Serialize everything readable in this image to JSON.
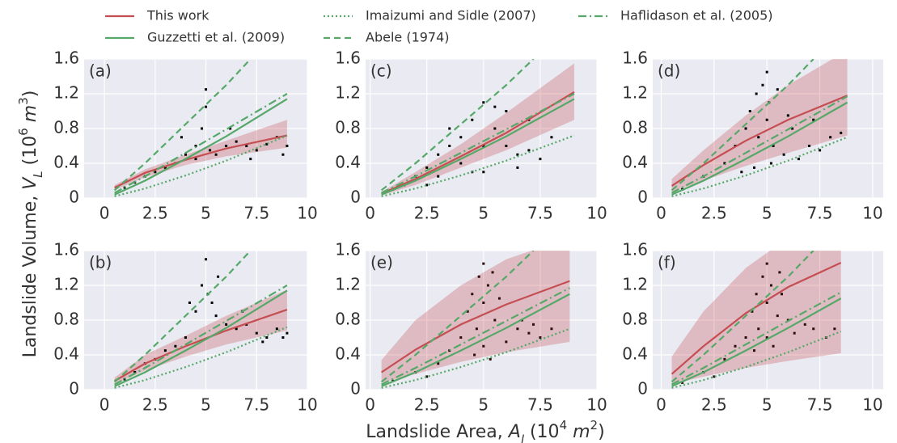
{
  "chart_data": [
    {
      "type": "scatter",
      "label": "(a)",
      "xlim": [
        -1,
        10
      ],
      "ylim": [
        0,
        1.6
      ],
      "xticks": [
        0,
        2.5,
        5,
        7.5,
        10
      ],
      "yticks": [
        0,
        0.4,
        0.8,
        1.2,
        1.6
      ],
      "grid": true,
      "points": {
        "color": "#000000",
        "x": [
          1,
          1.5,
          2,
          2.5,
          3,
          3.5,
          4,
          4.5,
          4.8,
          5,
          5,
          5.2,
          5.5,
          6,
          6.5,
          7,
          7.5,
          8,
          8.5,
          9,
          3.8,
          4.5,
          6.2,
          7.2,
          8.8
        ],
        "y": [
          0.12,
          0.18,
          0.25,
          0.3,
          0.35,
          0.4,
          0.5,
          0.6,
          0.8,
          1.05,
          1.25,
          0.55,
          0.5,
          0.6,
          0.65,
          0.6,
          0.55,
          0.62,
          0.7,
          0.6,
          0.7,
          0.45,
          0.8,
          0.45,
          0.5
        ]
      },
      "series": [
        {
          "name": "This work",
          "color": "#c44e52",
          "style": "solid",
          "x": [
            0.5,
            2,
            4,
            6,
            9
          ],
          "values": [
            0.12,
            0.29,
            0.44,
            0.57,
            0.72
          ],
          "lower": [
            0.09,
            0.24,
            0.38,
            0.48,
            0.58
          ],
          "upper": [
            0.15,
            0.33,
            0.5,
            0.66,
            0.9
          ]
        },
        {
          "name": "Guzzetti et al. (2009)",
          "color": "#55a868",
          "style": "solid",
          "x": [
            0.5,
            2,
            4,
            6,
            9
          ],
          "values": [
            0.04,
            0.2,
            0.45,
            0.71,
            1.14
          ]
        },
        {
          "name": "Imaizumi and Sidle (2007)",
          "color": "#55a868",
          "style": "dotted",
          "x": [
            0.5,
            2,
            4,
            6,
            9
          ],
          "values": [
            0.02,
            0.11,
            0.26,
            0.43,
            0.72
          ]
        },
        {
          "name": "Abele (1974)",
          "color": "#55a868",
          "style": "dashed",
          "x": [
            0.5,
            2,
            4,
            6,
            7.2
          ],
          "values": [
            0.09,
            0.4,
            0.85,
            1.3,
            1.6
          ]
        },
        {
          "name": "Haflidason et al. (2005)",
          "color": "#55a868",
          "style": "dashdot",
          "x": [
            0.5,
            2,
            4,
            6,
            9
          ],
          "values": [
            0.06,
            0.25,
            0.52,
            0.79,
            1.2
          ]
        }
      ]
    },
    {
      "type": "scatter",
      "label": "(b)",
      "xlim": [
        -1,
        10
      ],
      "ylim": [
        0,
        1.6
      ],
      "xticks": [
        0,
        2.5,
        5,
        7.5,
        10
      ],
      "yticks": [
        0,
        0.4,
        0.8,
        1.2,
        1.6
      ],
      "grid": true,
      "points": {
        "color": "#000000",
        "x": [
          1,
          1.5,
          2,
          2.5,
          3,
          3.5,
          4,
          4.5,
          4.8,
          5,
          5.1,
          5.3,
          5.5,
          6,
          6.5,
          7,
          7.5,
          8,
          8.5,
          9,
          4.2,
          5.6,
          6.8,
          7.8,
          8.8
        ],
        "y": [
          0.12,
          0.2,
          0.3,
          0.35,
          0.45,
          0.5,
          0.6,
          0.9,
          1.2,
          1.5,
          1.1,
          1.0,
          0.85,
          0.75,
          0.7,
          0.75,
          0.65,
          0.6,
          0.7,
          0.65,
          1.0,
          1.3,
          0.9,
          0.55,
          0.6
        ]
      },
      "series": [
        {
          "name": "This work",
          "color": "#c44e52",
          "style": "solid",
          "x": [
            0.5,
            2,
            4,
            6,
            9
          ],
          "values": [
            0.1,
            0.3,
            0.5,
            0.68,
            0.92
          ],
          "lower": [
            0.06,
            0.22,
            0.38,
            0.52,
            0.68
          ],
          "upper": [
            0.14,
            0.4,
            0.62,
            0.85,
            1.15
          ]
        },
        {
          "name": "Guzzetti et al. (2009)",
          "color": "#55a868",
          "style": "solid",
          "x": [
            0.5,
            2,
            4,
            6,
            9
          ],
          "values": [
            0.04,
            0.2,
            0.45,
            0.71,
            1.14
          ]
        },
        {
          "name": "Imaizumi and Sidle (2007)",
          "color": "#55a868",
          "style": "dotted",
          "x": [
            0.5,
            2,
            4,
            6,
            9
          ],
          "values": [
            0.02,
            0.11,
            0.26,
            0.43,
            0.72
          ]
        },
        {
          "name": "Abele (1974)",
          "color": "#55a868",
          "style": "dashed",
          "x": [
            0.5,
            2,
            4,
            6,
            7.2
          ],
          "values": [
            0.09,
            0.4,
            0.85,
            1.3,
            1.6
          ]
        },
        {
          "name": "Haflidason et al. (2005)",
          "color": "#55a868",
          "style": "dashdot",
          "x": [
            0.5,
            2,
            4,
            6,
            9
          ],
          "values": [
            0.06,
            0.25,
            0.52,
            0.79,
            1.2
          ]
        }
      ]
    },
    {
      "type": "scatter",
      "label": "(c)",
      "xlim": [
        -0.2,
        10
      ],
      "ylim": [
        0,
        1.6
      ],
      "xticks": [
        0,
        2.5,
        5,
        7.5,
        10
      ],
      "yticks": [
        0,
        0.4,
        0.8,
        1.2,
        1.6
      ],
      "grid": true,
      "points": {
        "color": "#000000",
        "x": [
          1,
          1.5,
          2,
          2.5,
          3,
          3.5,
          4,
          4.5,
          5,
          5,
          5.5,
          6,
          6.5,
          7,
          7.5,
          8,
          3,
          4,
          5,
          6,
          7,
          4.5,
          5.5,
          6.5,
          2.5,
          3.5
        ],
        "y": [
          0.1,
          0.15,
          0.25,
          0.35,
          0.5,
          0.6,
          0.7,
          0.9,
          1.1,
          0.3,
          0.8,
          0.6,
          0.5,
          0.55,
          0.45,
          0.7,
          0.25,
          0.4,
          0.6,
          1.0,
          0.9,
          0.3,
          1.05,
          0.35,
          0.15,
          0.8
        ]
      },
      "series": [
        {
          "name": "This work",
          "color": "#c44e52",
          "style": "solid",
          "x": [
            0.5,
            2,
            4,
            6,
            9
          ],
          "values": [
            0.05,
            0.22,
            0.48,
            0.75,
            1.22
          ],
          "lower": [
            0.03,
            0.15,
            0.35,
            0.55,
            0.9
          ],
          "upper": [
            0.07,
            0.3,
            0.62,
            0.98,
            1.55
          ]
        },
        {
          "name": "Guzzetti et al. (2009)",
          "color": "#55a868",
          "style": "solid",
          "x": [
            0.5,
            2,
            4,
            6,
            9
          ],
          "values": [
            0.04,
            0.2,
            0.45,
            0.71,
            1.14
          ]
        },
        {
          "name": "Imaizumi and Sidle (2007)",
          "color": "#55a868",
          "style": "dotted",
          "x": [
            0.5,
            2,
            4,
            6,
            9
          ],
          "values": [
            0.02,
            0.11,
            0.26,
            0.43,
            0.72
          ]
        },
        {
          "name": "Abele (1974)",
          "color": "#55a868",
          "style": "dashed",
          "x": [
            0.5,
            2,
            4,
            6,
            7.2
          ],
          "values": [
            0.09,
            0.4,
            0.85,
            1.3,
            1.6
          ]
        },
        {
          "name": "Haflidason et al. (2005)",
          "color": "#55a868",
          "style": "dashdot",
          "x": [
            0.5,
            2,
            4,
            6,
            9
          ],
          "values": [
            0.06,
            0.25,
            0.52,
            0.79,
            1.2
          ]
        }
      ]
    },
    {
      "type": "scatter",
      "label": "(d)",
      "xlim": [
        -0.4,
        10.5
      ],
      "ylim": [
        0,
        1.6
      ],
      "xticks": [
        0,
        2.5,
        5,
        7.5,
        10
      ],
      "yticks": [
        0,
        0.4,
        0.8,
        1.2,
        1.6
      ],
      "grid": true,
      "points": {
        "color": "#000000",
        "x": [
          1,
          2,
          3,
          3.5,
          4,
          4.2,
          4.5,
          4.6,
          4.8,
          5,
          5,
          5.1,
          5.3,
          5.5,
          5.8,
          6,
          6.5,
          7,
          7.5,
          8,
          8.5,
          4.4,
          5.2,
          6.2,
          7.2,
          3.8
        ],
        "y": [
          0.1,
          0.25,
          0.4,
          0.6,
          0.8,
          1.0,
          1.2,
          0.7,
          1.3,
          1.45,
          0.9,
          1.1,
          0.6,
          1.25,
          0.5,
          0.95,
          0.45,
          0.6,
          0.55,
          0.7,
          0.75,
          0.35,
          0.4,
          0.8,
          0.9,
          0.3
        ]
      },
      "series": [
        {
          "name": "This work",
          "color": "#c44e52",
          "style": "solid",
          "x": [
            0.5,
            2,
            4,
            6,
            8.8
          ],
          "values": [
            0.14,
            0.38,
            0.66,
            0.9,
            1.18
          ],
          "lower": [
            0.07,
            0.2,
            0.37,
            0.52,
            0.72
          ],
          "upper": [
            0.22,
            0.55,
            0.95,
            1.3,
            1.7
          ]
        },
        {
          "name": "Guzzetti et al. (2009)",
          "color": "#55a868",
          "style": "solid",
          "x": [
            0.5,
            2,
            4,
            6,
            8.8
          ],
          "values": [
            0.04,
            0.2,
            0.45,
            0.71,
            1.1
          ]
        },
        {
          "name": "Imaizumi and Sidle (2007)",
          "color": "#55a868",
          "style": "dotted",
          "x": [
            0.5,
            2,
            4,
            6,
            8.8
          ],
          "values": [
            0.02,
            0.11,
            0.26,
            0.43,
            0.7
          ]
        },
        {
          "name": "Abele (1974)",
          "color": "#55a868",
          "style": "dashed",
          "x": [
            0.5,
            2,
            4,
            6,
            7.2
          ],
          "values": [
            0.09,
            0.4,
            0.85,
            1.3,
            1.6
          ]
        },
        {
          "name": "Haflidason et al. (2005)",
          "color": "#55a868",
          "style": "dashdot",
          "x": [
            0.5,
            2,
            4,
            6,
            8.8
          ],
          "values": [
            0.06,
            0.25,
            0.52,
            0.79,
            1.17
          ]
        }
      ]
    },
    {
      "type": "scatter",
      "label": "(e)",
      "xlim": [
        -0.2,
        10
      ],
      "ylim": [
        0,
        1.6
      ],
      "xticks": [
        0,
        2.5,
        5,
        7.5,
        10
      ],
      "yticks": [
        0,
        0.4,
        0.8,
        1.2,
        1.6
      ],
      "grid": true,
      "points": {
        "color": "#2a0d0d",
        "x": [
          1,
          2,
          3,
          3.5,
          4,
          4.3,
          4.5,
          4.7,
          4.8,
          5,
          5,
          5,
          5.2,
          5.3,
          5.5,
          5.7,
          6,
          6.5,
          6.7,
          7,
          7.2,
          7.5,
          8,
          4.6,
          5.4,
          2.5
        ],
        "y": [
          0.1,
          0.2,
          0.3,
          0.45,
          0.6,
          0.9,
          1.1,
          0.7,
          1.3,
          1.45,
          0.5,
          1.0,
          1.2,
          0.35,
          0.8,
          1.05,
          0.55,
          0.7,
          0.8,
          0.65,
          0.75,
          0.6,
          0.7,
          0.4,
          1.35,
          0.15
        ]
      },
      "series": [
        {
          "name": "This work",
          "color": "#c44e52",
          "style": "solid",
          "x": [
            0.5,
            2,
            4,
            6,
            8.8
          ],
          "values": [
            0.2,
            0.46,
            0.75,
            0.98,
            1.25
          ],
          "lower": [
            0.08,
            0.18,
            0.32,
            0.43,
            0.55
          ],
          "upper": [
            0.34,
            0.8,
            1.2,
            1.5,
            1.75
          ]
        },
        {
          "name": "Guzzetti et al. (2009)",
          "color": "#55a868",
          "style": "solid",
          "x": [
            0.5,
            2,
            4,
            6,
            8.8
          ],
          "values": [
            0.04,
            0.2,
            0.45,
            0.71,
            1.1
          ]
        },
        {
          "name": "Imaizumi and Sidle (2007)",
          "color": "#55a868",
          "style": "dotted",
          "x": [
            0.5,
            2,
            4,
            6,
            8.8
          ],
          "values": [
            0.02,
            0.11,
            0.26,
            0.43,
            0.7
          ]
        },
        {
          "name": "Abele (1974)",
          "color": "#55a868",
          "style": "dashed",
          "x": [
            0.5,
            2,
            4,
            6,
            7.2
          ],
          "values": [
            0.09,
            0.4,
            0.85,
            1.3,
            1.6
          ]
        },
        {
          "name": "Haflidason et al. (2005)",
          "color": "#55a868",
          "style": "dashdot",
          "x": [
            0.5,
            2,
            4,
            6,
            8.8
          ],
          "values": [
            0.06,
            0.25,
            0.52,
            0.79,
            1.17
          ]
        }
      ]
    },
    {
      "type": "scatter",
      "label": "(f)",
      "xlim": [
        -0.4,
        10.5
      ],
      "ylim": [
        0,
        1.6
      ],
      "xticks": [
        0,
        2.5,
        5,
        7.5,
        10
      ],
      "yticks": [
        0,
        0.4,
        0.8,
        1.2,
        1.6
      ],
      "grid": true,
      "points": {
        "color": "#2a0d0d",
        "x": [
          1,
          2,
          3,
          3.5,
          4,
          4.3,
          4.5,
          4.6,
          4.8,
          5,
          5,
          5,
          5.2,
          5.3,
          5.5,
          5.7,
          6,
          6.3,
          6.8,
          7.2,
          7.8,
          8.2,
          4.4,
          5.6,
          2.5
        ],
        "y": [
          0.08,
          0.2,
          0.35,
          0.5,
          0.6,
          0.9,
          1.1,
          0.7,
          1.3,
          1.45,
          0.6,
          1.0,
          1.2,
          0.5,
          0.85,
          1.1,
          0.8,
          0.65,
          0.75,
          0.7,
          0.6,
          0.7,
          0.45,
          1.35,
          0.15
        ]
      },
      "series": [
        {
          "name": "This work",
          "color": "#c44e52",
          "style": "solid",
          "x": [
            0.5,
            2,
            4,
            6,
            8.5
          ],
          "values": [
            0.18,
            0.5,
            0.88,
            1.18,
            1.46
          ],
          "lower": [
            0.06,
            0.15,
            0.25,
            0.33,
            0.42
          ],
          "upper": [
            0.38,
            0.9,
            1.4,
            1.75,
            2.0
          ]
        },
        {
          "name": "Guzzetti et al. (2009)",
          "color": "#55a868",
          "style": "solid",
          "x": [
            0.5,
            2,
            4,
            6,
            8.5
          ],
          "values": [
            0.04,
            0.2,
            0.45,
            0.71,
            1.05
          ]
        },
        {
          "name": "Imaizumi and Sidle (2007)",
          "color": "#55a868",
          "style": "dotted",
          "x": [
            0.5,
            2,
            4,
            6,
            8.5
          ],
          "values": [
            0.02,
            0.11,
            0.26,
            0.43,
            0.67
          ]
        },
        {
          "name": "Abele (1974)",
          "color": "#55a868",
          "style": "dashed",
          "x": [
            0.5,
            2,
            4,
            6,
            7.2
          ],
          "values": [
            0.09,
            0.4,
            0.85,
            1.3,
            1.6
          ]
        },
        {
          "name": "Haflidason et al. (2005)",
          "color": "#55a868",
          "style": "dashdot",
          "x": [
            0.5,
            2,
            4,
            6,
            8.5
          ],
          "values": [
            0.06,
            0.25,
            0.52,
            0.79,
            1.12
          ]
        }
      ]
    }
  ],
  "xlabel": [
    "Landslide Area, ",
    "A",
    "l",
    "  (10",
    "4",
    " m",
    "2",
    ")"
  ],
  "ylabel": [
    "Landslide Volume, ",
    "V",
    "L",
    "  (10",
    "6",
    " m",
    "3",
    ")"
  ]
}
